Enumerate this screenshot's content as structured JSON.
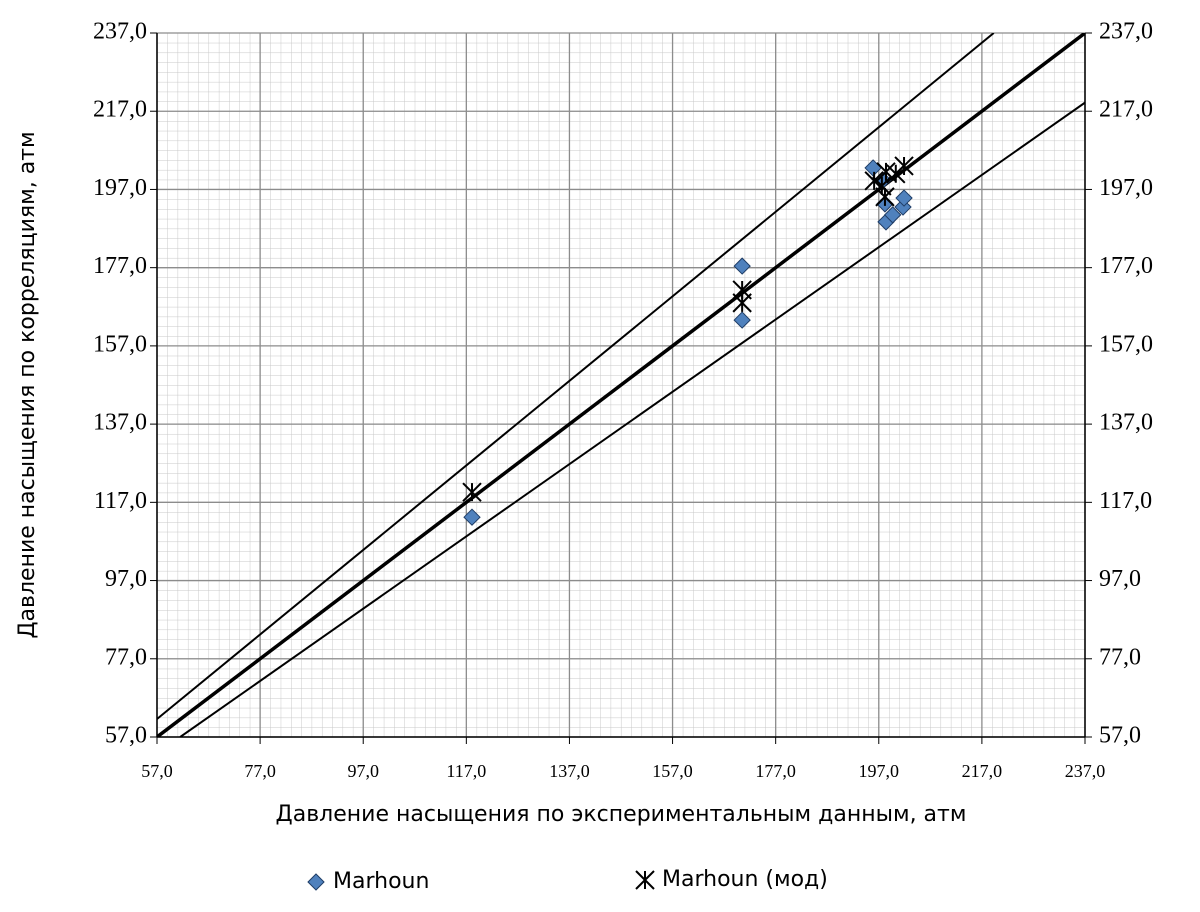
{
  "chart_data": {
    "type": "scatter",
    "x_label": "Давление насыщения по экспериментальным данным, атм",
    "y_label": "Давление насыщения по корреляциям, атм",
    "xlim": [
      57,
      237
    ],
    "ylim": [
      57,
      237
    ],
    "xticks": [
      {
        "value": 57,
        "label": "57,0"
      },
      {
        "value": 77,
        "label": "77,0"
      },
      {
        "value": 97,
        "label": "97,0"
      },
      {
        "value": 117,
        "label": "117,0"
      },
      {
        "value": 137,
        "label": "137,0"
      },
      {
        "value": 157,
        "label": "157,0"
      },
      {
        "value": 177,
        "label": "177,0"
      },
      {
        "value": 197,
        "label": "197,0"
      },
      {
        "value": 217,
        "label": "217,0"
      },
      {
        "value": 237,
        "label": "237,0"
      }
    ],
    "yticks": [
      {
        "value": 57,
        "label": "57,0"
      },
      {
        "value": 77,
        "label": "77,0"
      },
      {
        "value": 97,
        "label": "97,0"
      },
      {
        "value": 117,
        "label": "117,0"
      },
      {
        "value": 137,
        "label": "137,0"
      },
      {
        "value": 157,
        "label": "157,0"
      },
      {
        "value": 177,
        "label": "177,0"
      },
      {
        "value": 197,
        "label": "197,0"
      },
      {
        "value": 217,
        "label": "217,0"
      },
      {
        "value": 237,
        "label": "237,0"
      }
    ],
    "grid": true,
    "series": [
      {
        "name": "Marhoun",
        "marker": "diamond",
        "color": "#4f81bd",
        "x": [
          118.1,
          170.5,
          170.5,
          195.9,
          198.2,
          198.4,
          199.7,
          201.7,
          201.9,
          197.8
        ],
        "values": [
          113.2,
          177.4,
          163.6,
          202.5,
          193.3,
          188.7,
          190.5,
          192.5,
          194.8,
          199.4
        ]
      },
      {
        "name": "Marhoun (мод)",
        "marker": "star",
        "color": "#000000",
        "x": [
          118.1,
          170.5,
          170.5,
          196.1,
          197.6,
          198.4,
          200.3,
          201.9,
          198.2
        ],
        "values": [
          119.6,
          171.3,
          168.0,
          199.2,
          197.9,
          201.5,
          201.0,
          203.0,
          195.1
        ]
      }
    ],
    "lines": [
      {
        "x": [
          57,
          219.3
        ],
        "values": [
          61.6,
          237
        ],
        "color": "#000000",
        "width": 2
      },
      {
        "x": [
          57,
          237
        ],
        "values": [
          57,
          237
        ],
        "color": "#000000",
        "width": 3.5
      },
      {
        "x": [
          61.5,
          237
        ],
        "values": [
          57,
          219.2
        ],
        "color": "#000000",
        "width": 2
      }
    ]
  }
}
